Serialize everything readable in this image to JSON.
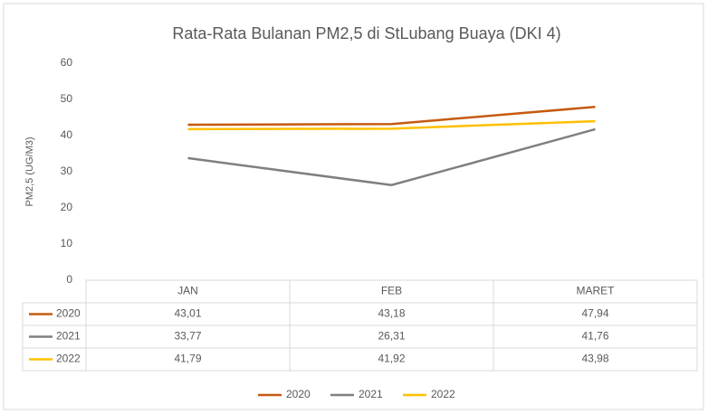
{
  "chart_data": {
    "type": "line",
    "title": "Rata-Rata Bulanan PM2,5 di StLubang Buaya (DKI 4)",
    "ylabel": "PM2,5 (UG/M3)",
    "categories": [
      "JAN",
      "FEB",
      "MARET"
    ],
    "series": [
      {
        "name": "2020",
        "color": "#c55a11",
        "values": [
          43.01,
          43.18,
          47.94
        ],
        "value_labels": [
          "43,01",
          "43,18",
          "47,94"
        ]
      },
      {
        "name": "2021",
        "color": "#7f7f7f",
        "values": [
          33.77,
          26.31,
          41.76
        ],
        "value_labels": [
          "33,77",
          "26,31",
          "41,76"
        ]
      },
      {
        "name": "2022",
        "color": "#ffc000",
        "values": [
          41.79,
          41.92,
          43.98
        ],
        "value_labels": [
          "41,79",
          "41,92",
          "43,98"
        ]
      }
    ],
    "ylim": [
      0,
      60
    ],
    "yticks": [
      0,
      10,
      20,
      30,
      40,
      50,
      60
    ],
    "grid": false,
    "legend": "bottom"
  }
}
